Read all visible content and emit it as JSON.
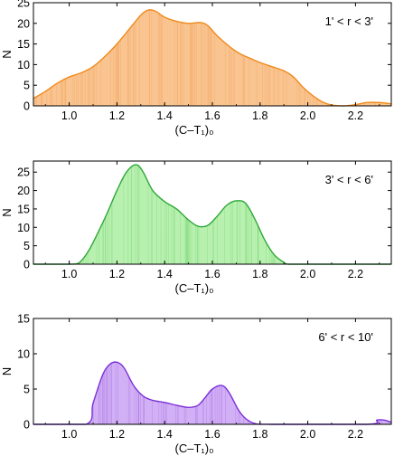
{
  "chart_data": [
    {
      "type": "area",
      "annotation": "1' < r <  3'",
      "xlabel": "(C–T₁)₀",
      "ylabel": "N",
      "xlim": [
        0.85,
        2.35
      ],
      "ylim": [
        0,
        25
      ],
      "xticks": [
        "1.0",
        "1.2",
        "1.4",
        "1.6",
        "1.8",
        "2.0",
        "2.2"
      ],
      "yticks": [
        "0",
        "5",
        "10",
        "15",
        "20",
        "25"
      ],
      "grid": false,
      "legend": "none",
      "colors": {
        "fill": "#f9c490",
        "line": "#f08a1a",
        "hatch": "#f3a765"
      },
      "x": [
        0.85,
        0.9,
        0.95,
        1.0,
        1.05,
        1.1,
        1.15,
        1.2,
        1.25,
        1.3,
        1.33,
        1.36,
        1.4,
        1.45,
        1.5,
        1.55,
        1.58,
        1.62,
        1.68,
        1.72,
        1.76,
        1.8,
        1.85,
        1.9,
        1.94,
        1.98,
        2.02,
        2.06,
        2.1,
        2.15,
        2.2,
        2.25,
        2.3,
        2.35
      ],
      "values": [
        1.8,
        3.5,
        5.5,
        7.0,
        8.0,
        9.5,
        12.0,
        15.0,
        18.5,
        22.0,
        23.2,
        23.0,
        21.5,
        20.5,
        20.0,
        20.2,
        19.5,
        17.0,
        14.0,
        12.5,
        11.5,
        10.5,
        9.5,
        8.5,
        7.0,
        4.5,
        2.5,
        1.0,
        0.2,
        0.0,
        0.3,
        0.8,
        0.8,
        0.5
      ]
    },
    {
      "type": "area",
      "annotation": "3' < r <  6'",
      "xlabel": "(C–T₁)₀",
      "ylabel": "N",
      "xlim": [
        0.85,
        2.35
      ],
      "ylim": [
        0,
        28
      ],
      "xticks": [
        "1.0",
        "1.2",
        "1.4",
        "1.6",
        "1.8",
        "2.0",
        "2.2"
      ],
      "yticks": [
        "0",
        "5",
        "10",
        "15",
        "20",
        "25"
      ],
      "grid": false,
      "legend": "none",
      "colors": {
        "fill": "#b8f0b0",
        "line": "#2ea838",
        "hatch": "#7ed779"
      },
      "x": [
        0.85,
        1.0,
        1.04,
        1.08,
        1.12,
        1.16,
        1.2,
        1.24,
        1.28,
        1.31,
        1.35,
        1.4,
        1.45,
        1.5,
        1.54,
        1.58,
        1.62,
        1.66,
        1.7,
        1.74,
        1.78,
        1.82,
        1.86,
        1.9,
        1.92,
        2.0,
        2.35
      ],
      "values": [
        0.0,
        0.0,
        0.3,
        3.5,
        8.5,
        14.0,
        20.0,
        25.0,
        27.0,
        25.0,
        20.0,
        17.0,
        15.0,
        12.0,
        10.3,
        10.5,
        13.0,
        16.0,
        17.2,
        16.5,
        12.0,
        6.5,
        2.5,
        0.5,
        0.0,
        0.0,
        0.0
      ]
    },
    {
      "type": "area",
      "annotation": "6' < r <  10'",
      "xlabel": "(C–T₁)₀",
      "ylabel": "N",
      "xlim": [
        0.85,
        2.35
      ],
      "ylim": [
        0,
        15
      ],
      "xticks": [
        "1.0",
        "1.2",
        "1.4",
        "1.6",
        "1.8",
        "2.0",
        "2.2"
      ],
      "yticks": [
        "0",
        "5",
        "10",
        "15"
      ],
      "grid": false,
      "legend": "none",
      "colors": {
        "fill": "#d2b0f5",
        "line": "#7b30d8",
        "hatch": "#a977e6"
      },
      "x": [
        0.85,
        1.07,
        1.1,
        1.14,
        1.17,
        1.2,
        1.23,
        1.27,
        1.31,
        1.35,
        1.4,
        1.45,
        1.5,
        1.54,
        1.57,
        1.6,
        1.64,
        1.67,
        1.71,
        1.74,
        1.78,
        1.85,
        2.25,
        2.29,
        2.32,
        2.35
      ],
      "values": [
        0.0,
        0.0,
        3.0,
        7.0,
        8.5,
        8.8,
        8.0,
        5.5,
        4.0,
        3.4,
        3.1,
        2.7,
        2.4,
        2.7,
        3.8,
        5.0,
        5.5,
        4.5,
        2.0,
        0.8,
        0.1,
        0.0,
        0.0,
        0.6,
        0.6,
        0.3
      ]
    }
  ]
}
